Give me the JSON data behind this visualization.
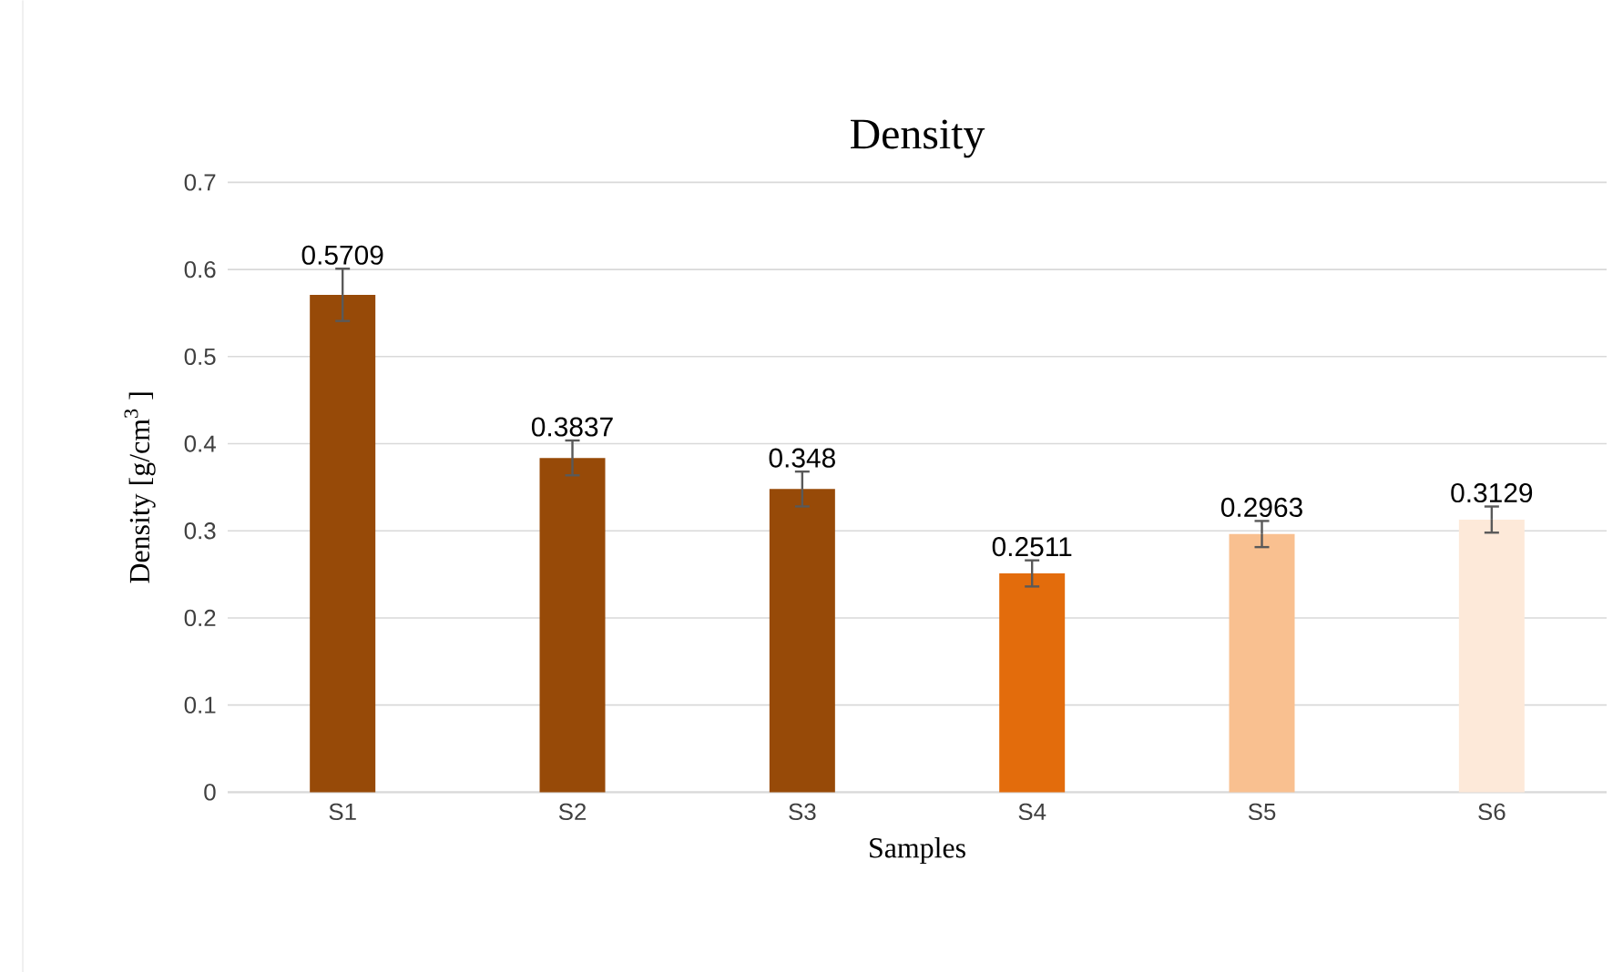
{
  "chart_data": {
    "type": "bar",
    "title": "Density",
    "xlabel": "Samples",
    "ylabel": "Density [g/cm$^{3}$ ]",
    "categories": [
      "S1",
      "S2",
      "S3",
      "S4",
      "S5",
      "S6"
    ],
    "values": [
      0.5709,
      0.3837,
      0.348,
      0.2511,
      0.2963,
      0.3129
    ],
    "errors": [
      0.03,
      0.02,
      0.02,
      0.015,
      0.015,
      0.015
    ],
    "colors": [
      "#974a08",
      "#974a08",
      "#974a08",
      "#e36c0c",
      "#f9c090",
      "#fde9d9"
    ],
    "ylim": [
      0,
      0.7
    ],
    "yticks": [
      0,
      0.1,
      0.2,
      0.3,
      0.4,
      0.5,
      0.6,
      0.7
    ],
    "grid": "y",
    "data_labels": true
  }
}
